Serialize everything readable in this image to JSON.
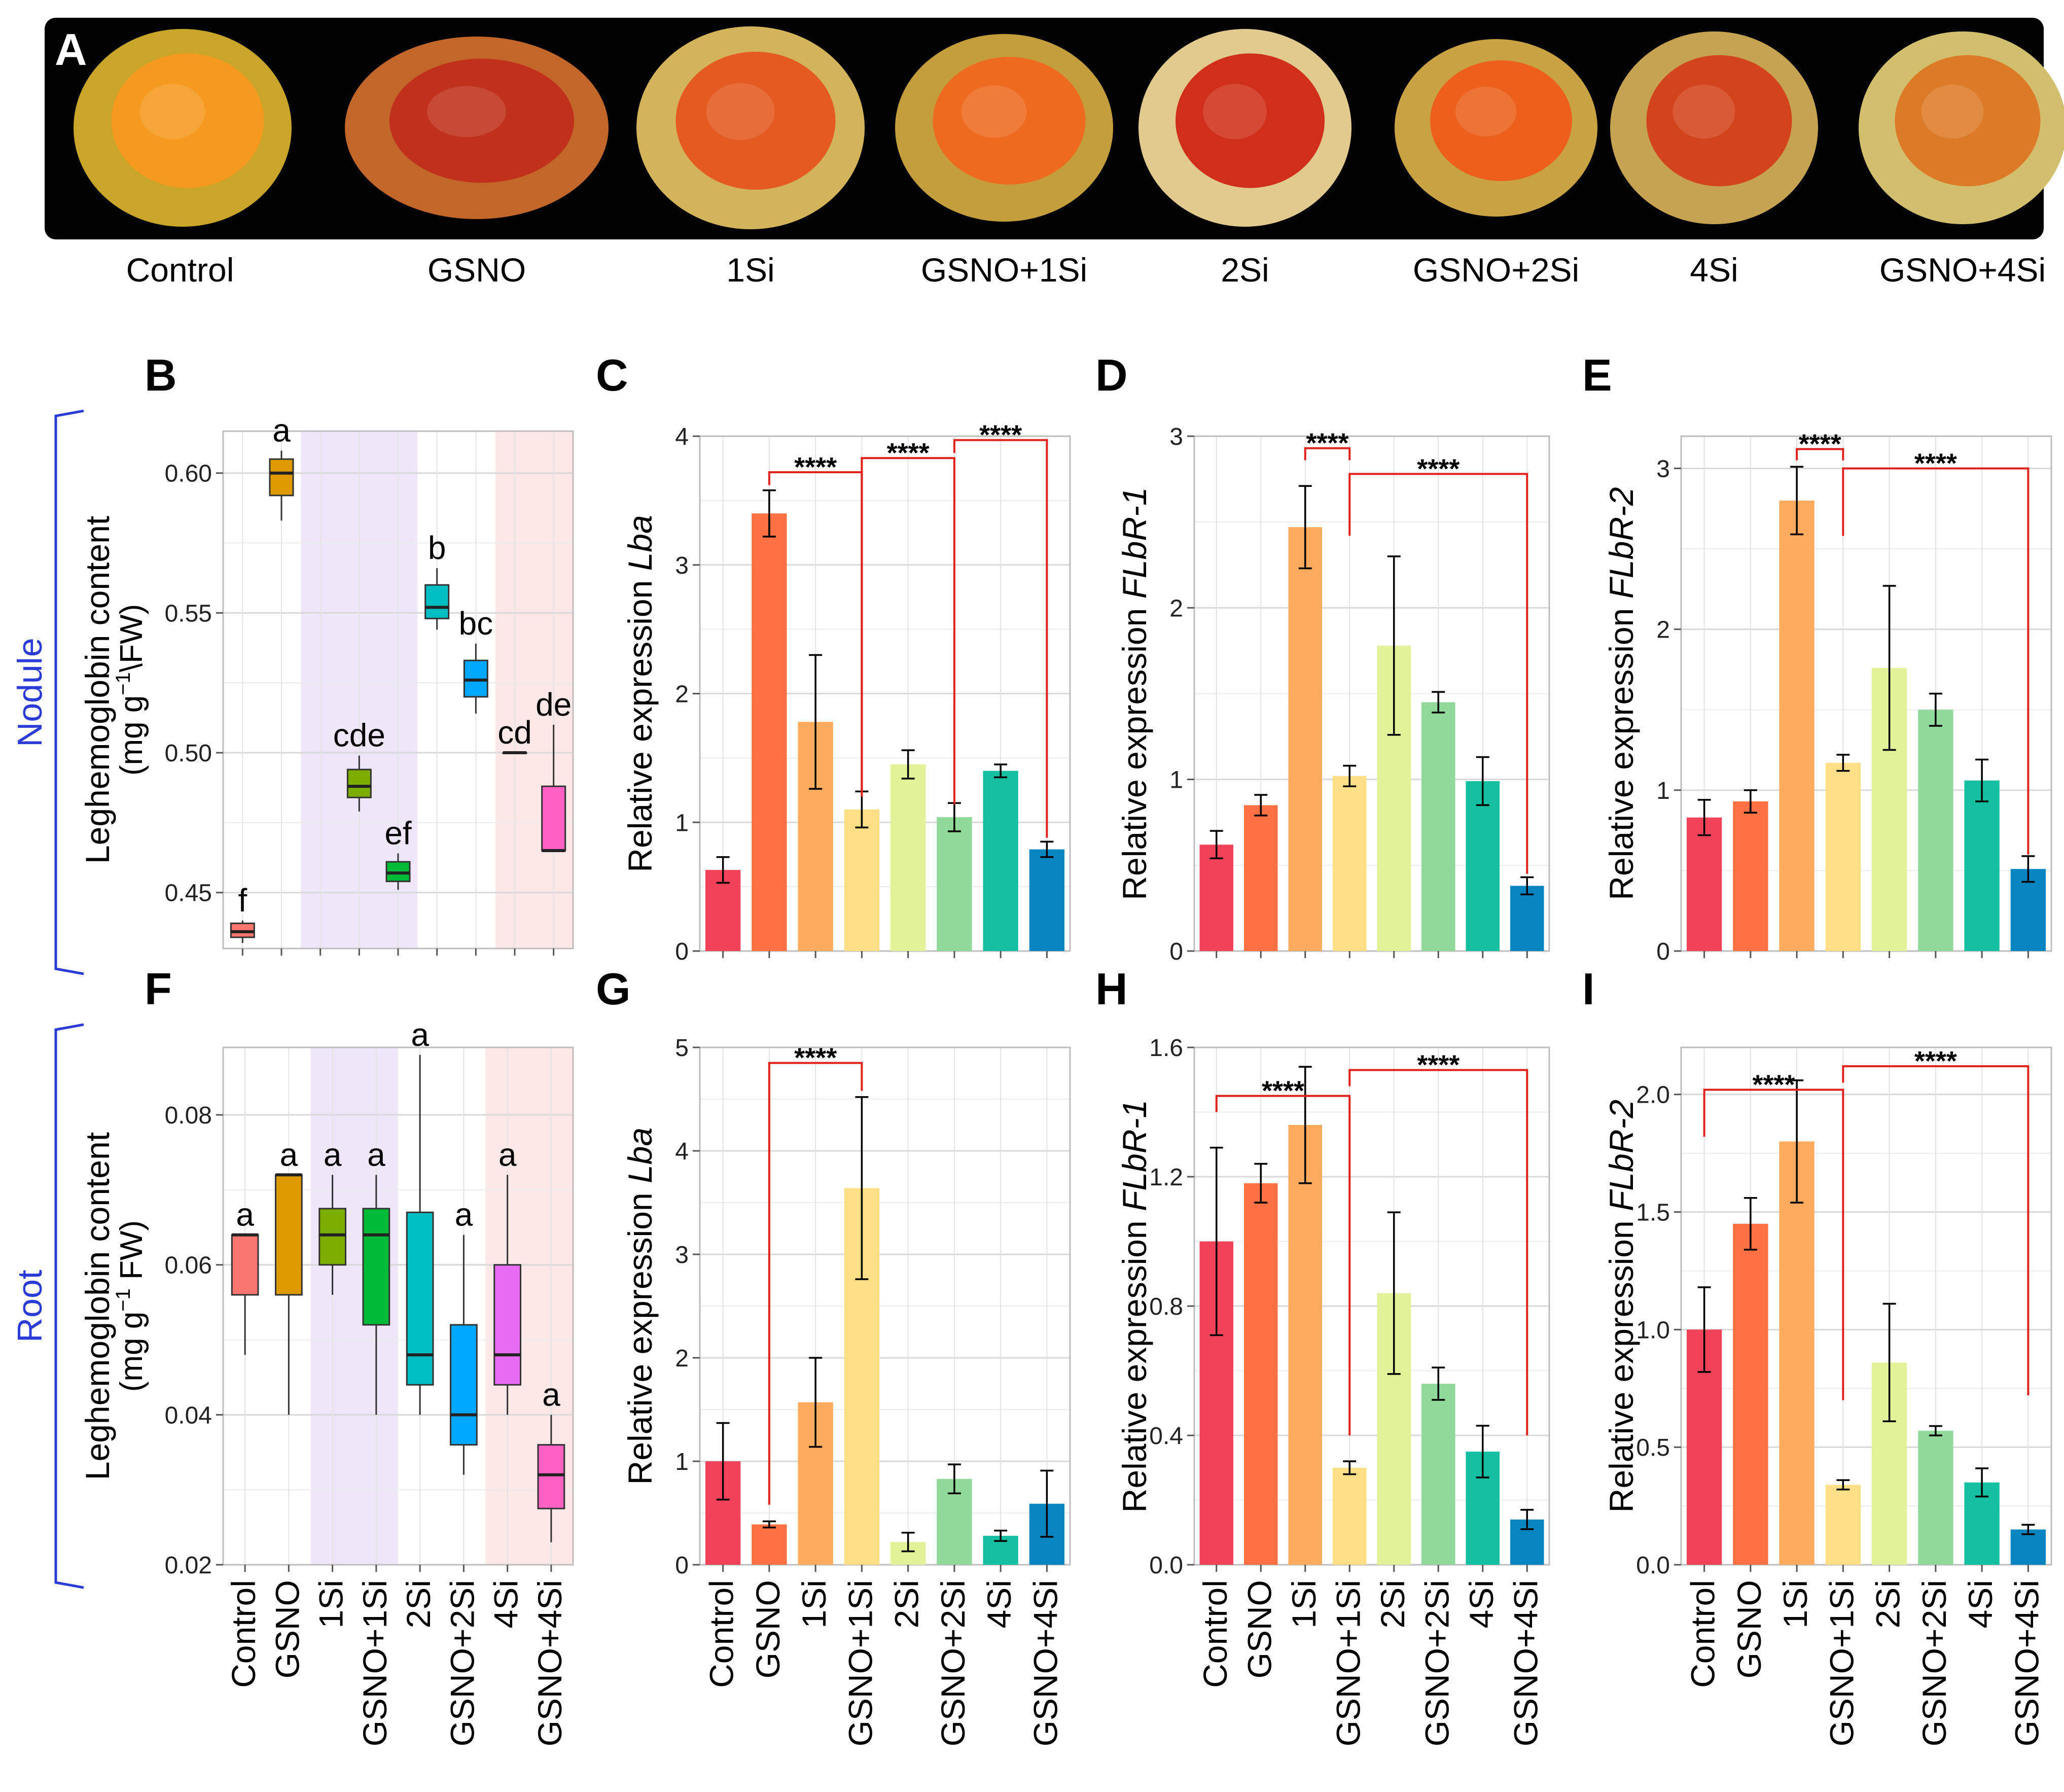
{
  "figure": {
    "panel_labels": {
      "A": "A",
      "B": "B",
      "C": "C",
      "D": "D",
      "E": "E",
      "F": "F",
      "G": "G",
      "H": "H",
      "I": "I"
    },
    "row_labels": {
      "nodule": "Nodule",
      "root": "Root"
    },
    "treatments": [
      "Control",
      "GSNO",
      "1Si",
      "GSNO+1Si",
      "2Si",
      "GSNO+2Si",
      "4Si",
      "GSNO+4Si"
    ],
    "bar_colors": [
      "#f0435a",
      "#ff7043",
      "#ffab5e",
      "#ffdf86",
      "#e1f299",
      "#91d99a",
      "#14c0a0",
      "#0685c1"
    ],
    "box_colors": [
      "#f8766d",
      "#de9b00",
      "#7cae00",
      "#00ba38",
      "#00bfc4",
      "#00a9ff",
      "#e76bf3",
      "#ff61c3"
    ],
    "photo_colors": [
      {
        "rim": "#c9a52a",
        "core": "#f59a1e"
      },
      {
        "rim": "#c2662a",
        "core": "#c0301a"
      },
      {
        "rim": "#d3b45a",
        "core": "#e45a20"
      },
      {
        "rim": "#c59e3c",
        "core": "#ee6a1e"
      },
      {
        "rim": "#e2c98e",
        "core": "#d0301a"
      },
      {
        "rim": "#c9a243",
        "core": "#ec601c"
      },
      {
        "rim": "#c6a351",
        "core": "#d4441c"
      },
      {
        "rim": "#d2bf6e",
        "core": "#dc7a28"
      }
    ],
    "sig": "****"
  },
  "chart_data": [
    {
      "panel": "B",
      "type": "box",
      "ylabel_l1": "Leghemoglobin content",
      "ylabel_l2_pre": "(mg g",
      "ylabel_l2_sup": "−1",
      "ylabel_l2_post": "\\FW)",
      "ylim": [
        0.43,
        0.615
      ],
      "yticks": [
        0.45,
        0.5,
        0.55,
        0.6
      ],
      "ytick_labels": [
        "0.45",
        "0.50",
        "0.55",
        "0.60"
      ],
      "boxes": [
        {
          "q1": 0.434,
          "median": 0.436,
          "q3": 0.439,
          "wlo": 0.432,
          "whi": 0.44
        },
        {
          "q1": 0.592,
          "median": 0.6,
          "q3": 0.605,
          "wlo": 0.583,
          "whi": 0.608
        },
        null,
        {
          "q1": 0.484,
          "median": 0.488,
          "q3": 0.494,
          "wlo": 0.479,
          "whi": 0.499
        },
        {
          "q1": 0.454,
          "median": 0.457,
          "q3": 0.461,
          "wlo": 0.451,
          "whi": 0.464
        },
        {
          "q1": 0.548,
          "median": 0.552,
          "q3": 0.56,
          "wlo": 0.544,
          "whi": 0.566
        },
        {
          "q1": 0.52,
          "median": 0.526,
          "q3": 0.533,
          "wlo": 0.514,
          "whi": 0.539
        },
        {
          "q1": 0.5,
          "median": 0.5,
          "q3": 0.5,
          "wlo": 0.5,
          "whi": 0.5
        },
        {
          "q1": 0.465,
          "median": 0.465,
          "q3": 0.488,
          "wlo": 0.465,
          "whi": 0.51
        }
      ],
      "letters": [
        "f",
        "a",
        "",
        "cde",
        "ef",
        "b",
        "bc",
        "cd",
        "de"
      ],
      "x_slots": 9
    },
    {
      "panel": "C",
      "type": "bar",
      "ylabel_pre": "Relative expression ",
      "ylabel_it": "Lba",
      "ylim": [
        0,
        4
      ],
      "yticks": [
        0,
        1,
        2,
        3,
        4
      ],
      "ytick_labels": [
        "0",
        "1",
        "2",
        "3",
        "4"
      ],
      "values": [
        0.63,
        3.4,
        1.78,
        1.1,
        1.45,
        1.04,
        1.4,
        0.79
      ],
      "errors": [
        0.1,
        0.18,
        0.52,
        0.14,
        0.11,
        0.11,
        0.05,
        0.06
      ],
      "brackets": [
        {
          "from": 1,
          "to": 3,
          "level": 3.72,
          "dl": 3.62,
          "dr": 1.2
        },
        {
          "from": 3,
          "to": 5,
          "level": 3.83,
          "dl": 1.2,
          "dr": 1.14
        },
        {
          "from": 5,
          "to": 7,
          "level": 3.97,
          "dl": 3.87,
          "dr": 0.88
        }
      ]
    },
    {
      "panel": "D",
      "type": "bar",
      "ylabel_pre": "Relative expression ",
      "ylabel_it": "FLbR-1",
      "ylim": [
        0,
        3
      ],
      "yticks": [
        0,
        1,
        2,
        3
      ],
      "ytick_labels": [
        "0",
        "1",
        "2",
        "3"
      ],
      "values": [
        0.62,
        0.85,
        2.47,
        1.02,
        1.78,
        1.45,
        0.99,
        0.38
      ],
      "errors": [
        0.08,
        0.06,
        0.24,
        0.06,
        0.52,
        0.06,
        0.14,
        0.05
      ],
      "brackets": [
        {
          "from": 2,
          "to": 3,
          "level": 2.93,
          "dl": 2.86,
          "dr": 2.86
        },
        {
          "from": 3,
          "to": 7,
          "level": 2.78,
          "dl": 2.42,
          "dr": 0.45
        }
      ]
    },
    {
      "panel": "E",
      "type": "bar",
      "ylabel_pre": "Relative expression ",
      "ylabel_it": "FLbR-2",
      "ylim": [
        0,
        3.2
      ],
      "yticks": [
        0,
        1,
        2,
        3
      ],
      "ytick_labels": [
        "0",
        "1",
        "2",
        "3"
      ],
      "values": [
        0.83,
        0.93,
        2.8,
        1.17,
        1.76,
        1.5,
        1.06,
        0.51
      ],
      "errors": [
        0.11,
        0.07,
        0.21,
        0.05,
        0.51,
        0.1,
        0.13,
        0.08
      ],
      "brackets": [
        {
          "from": 2,
          "to": 3,
          "level": 3.12,
          "dl": 3.05,
          "dr": 3.05
        },
        {
          "from": 3,
          "to": 7,
          "level": 3.0,
          "dl": 2.58,
          "dr": 0.6
        }
      ]
    },
    {
      "panel": "F",
      "type": "box",
      "ylabel_l1": "Leghemoglobin content",
      "ylabel_l2_pre": "(mg g",
      "ylabel_l2_sup": "−1",
      "ylabel_l2_post": " FW)",
      "ylim": [
        0.02,
        0.089
      ],
      "yticks": [
        0.02,
        0.04,
        0.06,
        0.08
      ],
      "ytick_labels": [
        "0.02",
        "0.04",
        "0.06",
        "0.08"
      ],
      "boxes": [
        {
          "q1": 0.056,
          "median": 0.064,
          "q3": 0.064,
          "wlo": 0.048,
          "whi": 0.064
        },
        {
          "q1": 0.056,
          "median": 0.072,
          "q3": 0.072,
          "wlo": 0.04,
          "whi": 0.072
        },
        {
          "q1": 0.06,
          "median": 0.064,
          "q3": 0.0675,
          "wlo": 0.056,
          "whi": 0.072
        },
        {
          "q1": 0.052,
          "median": 0.064,
          "q3": 0.0675,
          "wlo": 0.04,
          "whi": 0.072
        },
        {
          "q1": 0.044,
          "median": 0.048,
          "q3": 0.067,
          "wlo": 0.04,
          "whi": 0.088
        },
        {
          "q1": 0.036,
          "median": 0.04,
          "q3": 0.052,
          "wlo": 0.032,
          "whi": 0.064
        },
        {
          "q1": 0.044,
          "median": 0.048,
          "q3": 0.06,
          "wlo": 0.04,
          "whi": 0.072
        },
        {
          "q1": 0.0275,
          "median": 0.032,
          "q3": 0.036,
          "wlo": 0.023,
          "whi": 0.04
        }
      ],
      "letters": [
        "a",
        "a",
        "a",
        "a",
        "a",
        "a",
        "a",
        "a"
      ],
      "x_slots": 8
    },
    {
      "panel": "G",
      "type": "bar",
      "ylabel_pre": "Relative expression ",
      "ylabel_it": "Lba",
      "ylim": [
        0,
        5
      ],
      "yticks": [
        0,
        1,
        2,
        3,
        4,
        5
      ],
      "ytick_labels": [
        "0",
        "1",
        "2",
        "3",
        "4",
        "5"
      ],
      "values": [
        1.0,
        0.39,
        1.57,
        3.64,
        0.22,
        0.83,
        0.28,
        0.59
      ],
      "errors": [
        0.37,
        0.03,
        0.43,
        0.88,
        0.09,
        0.14,
        0.05,
        0.32
      ],
      "brackets": [
        {
          "from": 1,
          "to": 3,
          "level": 4.85,
          "dl": 0.58,
          "dr": 4.58
        }
      ]
    },
    {
      "panel": "H",
      "type": "bar",
      "ylabel_pre": "Relative expression ",
      "ylabel_it": "FLbR-1",
      "ylim": [
        0,
        1.6
      ],
      "yticks": [
        0,
        0.4,
        0.8,
        1.2,
        1.6
      ],
      "ytick_labels": [
        "0.0",
        "0.4",
        "0.8",
        "1.2",
        "1.6"
      ],
      "values": [
        1.0,
        1.18,
        1.36,
        0.3,
        0.84,
        0.56,
        0.35,
        0.14
      ],
      "errors": [
        0.29,
        0.06,
        0.18,
        0.02,
        0.25,
        0.05,
        0.08,
        0.03
      ],
      "brackets": [
        {
          "from": 0,
          "to": 3,
          "level": 1.45,
          "dl": 1.4,
          "dr": 0.4
        },
        {
          "from": 3,
          "to": 7,
          "level": 1.53,
          "dl": 1.48,
          "dr": 0.4
        }
      ]
    },
    {
      "panel": "I",
      "type": "bar",
      "ylabel_pre": "Relative expression ",
      "ylabel_it": "FLbR-2",
      "ylim": [
        0,
        2.2
      ],
      "yticks": [
        0,
        0.5,
        1,
        1.5,
        2
      ],
      "ytick_labels": [
        "0.0",
        "0.5",
        "1.0",
        "1.5",
        "2.0"
      ],
      "values": [
        1.0,
        1.45,
        1.8,
        0.34,
        0.86,
        0.57,
        0.35,
        0.15
      ],
      "errors": [
        0.18,
        0.11,
        0.26,
        0.02,
        0.25,
        0.02,
        0.06,
        0.02
      ],
      "brackets": [
        {
          "from": 0,
          "to": 3,
          "level": 2.02,
          "dl": 1.82,
          "dr": 0.7
        },
        {
          "from": 3,
          "to": 7,
          "level": 2.12,
          "dl": 2.05,
          "dr": 0.72
        }
      ]
    }
  ]
}
